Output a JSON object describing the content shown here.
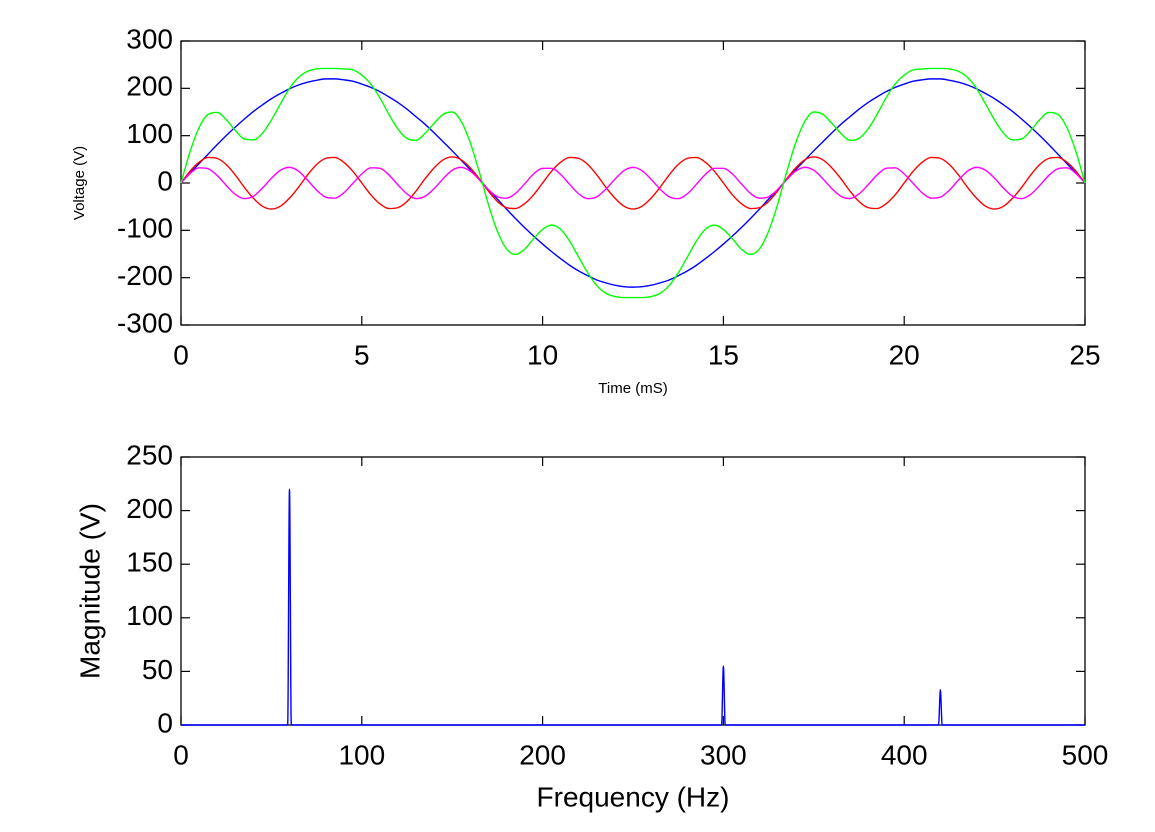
{
  "chart_data": [
    {
      "type": "line",
      "xlabel": "Time (mS)",
      "ylabel": "Voltage (V)",
      "xlim": [
        0,
        25
      ],
      "xticks": [
        0,
        5,
        10,
        15,
        20,
        25
      ],
      "ylim": [
        -300,
        300
      ],
      "yticks": [
        -300,
        -200,
        -100,
        0,
        100,
        200,
        300
      ],
      "x": [
        0,
        0.25,
        0.5,
        0.75,
        1,
        1.25,
        1.5,
        1.75,
        2,
        2.25,
        2.5,
        2.75,
        3,
        3.25,
        3.5,
        3.75,
        4,
        4.25,
        4.5,
        4.75,
        5,
        5.25,
        5.5,
        5.75,
        6,
        6.25,
        6.5,
        6.75,
        7,
        7.25,
        7.5,
        7.75,
        8,
        8.25,
        8.5,
        8.75,
        9,
        9.25,
        9.5,
        9.75,
        10,
        10.25,
        10.5,
        10.75,
        11,
        11.25,
        11.5,
        11.75,
        12,
        12.25,
        12.5,
        12.75,
        13,
        13.25,
        13.5,
        13.75,
        14,
        14.25,
        14.5,
        14.75,
        15,
        15.25,
        15.5,
        15.75,
        16,
        16.25,
        16.5,
        16.75,
        17,
        17.25,
        17.5,
        17.75,
        18,
        18.25,
        18.5,
        18.75,
        19,
        19.25,
        19.5,
        19.75,
        20,
        20.25,
        20.5,
        20.75,
        21,
        21.25,
        21.5,
        21.75,
        22,
        22.25,
        22.5,
        22.75,
        23,
        23.25,
        23.5,
        23.75,
        24,
        24.25,
        24.5,
        24.75,
        25
      ],
      "series": [
        {
          "color": "#0000ff",
          "values": [
            0,
            21,
            41,
            61,
            81,
            100,
            118,
            135,
            151,
            165,
            178,
            189,
            199,
            207,
            213,
            217,
            220,
            220,
            218,
            215,
            209,
            202,
            193,
            182,
            170,
            156,
            140,
            124,
            106,
            87,
            68,
            48,
            28,
            7,
            -14,
            -34,
            -55,
            -75,
            -94,
            -112,
            -129,
            -145,
            -160,
            -174,
            -186,
            -196,
            -205,
            -211,
            -216,
            -219,
            -220,
            -219,
            -216,
            -211,
            -205,
            -196,
            -186,
            -174,
            -160,
            -145,
            -129,
            -112,
            -94,
            -75,
            -55,
            -34,
            -14,
            7,
            28,
            48,
            68,
            87,
            106,
            124,
            140,
            156,
            170,
            182,
            193,
            202,
            209,
            215,
            218,
            220,
            220,
            217,
            213,
            207,
            199,
            189,
            178,
            165,
            151,
            135,
            118,
            100,
            81,
            61,
            41,
            21,
            0
          ]
        },
        {
          "color": "#ff0000",
          "values": [
            0,
            25,
            44,
            54,
            52,
            39,
            17,
            -9,
            -32,
            -49,
            -55,
            -49,
            -32,
            -9,
            17,
            39,
            52,
            54,
            44,
            25,
            0,
            -25,
            -44,
            -54,
            -52,
            -39,
            -17,
            9,
            32,
            49,
            55,
            49,
            32,
            9,
            -17,
            -39,
            -52,
            -54,
            -44,
            -25,
            0,
            25,
            44,
            54,
            52,
            39,
            17,
            -9,
            -32,
            -49,
            -55,
            -49,
            -32,
            -9,
            17,
            39,
            52,
            54,
            44,
            25,
            0,
            -25,
            -44,
            -54,
            -52,
            -39,
            -17,
            9,
            32,
            49,
            55,
            49,
            32,
            9,
            -17,
            -39,
            -52,
            -54,
            -44,
            -25,
            0,
            25,
            44,
            54,
            52,
            39,
            17,
            -9,
            -32,
            -49,
            -55,
            -49,
            -32,
            -9,
            17,
            39,
            52,
            54,
            44,
            25,
            0
          ]
        },
        {
          "color": "#ff00ff",
          "values": [
            0,
            20,
            32,
            30,
            16,
            -5,
            -24,
            -33,
            -28,
            -11,
            10,
            27,
            33,
            25,
            6,
            -15,
            -30,
            -32,
            -21,
            -1,
            19,
            32,
            31,
            17,
            -4,
            -23,
            -33,
            -28,
            -12,
            9,
            27,
            33,
            25,
            7,
            -14,
            -29,
            -32,
            -22,
            -2,
            19,
            31,
            31,
            18,
            -3,
            -23,
            -33,
            -29,
            -13,
            8,
            26,
            33,
            26,
            8,
            -13,
            -29,
            -33,
            -23,
            -3,
            18,
            31,
            31,
            19,
            -2,
            -22,
            -32,
            -29,
            -14,
            7,
            25,
            33,
            27,
            9,
            -12,
            -28,
            -33,
            -23,
            -4,
            17,
            31,
            32,
            19,
            -1,
            -21,
            -32,
            -30,
            -15,
            6,
            25,
            33,
            27,
            10,
            -11,
            -28,
            -33,
            -24,
            -5,
            16,
            30,
            32,
            20,
            0
          ]
        },
        {
          "color": "#00ff00",
          "values": [
            0,
            66,
            117,
            145,
            149,
            134,
            111,
            93,
            91,
            105,
            133,
            167,
            200,
            223,
            236,
            241,
            242,
            242,
            241,
            239,
            228,
            209,
            180,
            145,
            114,
            94,
            90,
            105,
            126,
            145,
            150,
            130,
            85,
            23,
            -45,
            -102,
            -139,
            -151,
            -140,
            -118,
            -98,
            -89,
            -98,
            -123,
            -157,
            -190,
            -217,
            -233,
            -240,
            -242,
            -242,
            -242,
            -240,
            -233,
            -217,
            -190,
            -157,
            -123,
            -98,
            -89,
            -98,
            -118,
            -140,
            -151,
            -139,
            -102,
            -45,
            23,
            85,
            130,
            150,
            145,
            126,
            105,
            90,
            94,
            114,
            145,
            180,
            209,
            228,
            239,
            241,
            242,
            242,
            241,
            236,
            223,
            200,
            167,
            133,
            105,
            91,
            93,
            111,
            134,
            149,
            145,
            117,
            66,
            0
          ]
        }
      ]
    },
    {
      "type": "line",
      "xlabel": "Frequency (Hz)",
      "ylabel": "Magnitude (V)",
      "xlim": [
        0,
        500
      ],
      "xticks": [
        0,
        100,
        200,
        300,
        400,
        500
      ],
      "ylim": [
        0,
        250
      ],
      "yticks": [
        0,
        50,
        100,
        150,
        200,
        250
      ],
      "x": [
        0,
        59,
        60,
        61,
        299,
        300,
        301,
        419,
        420,
        421,
        500
      ],
      "values": [
        0,
        0,
        220,
        0,
        0,
        55,
        0,
        0,
        33,
        0,
        0
      ],
      "color": "#0000ff"
    }
  ]
}
